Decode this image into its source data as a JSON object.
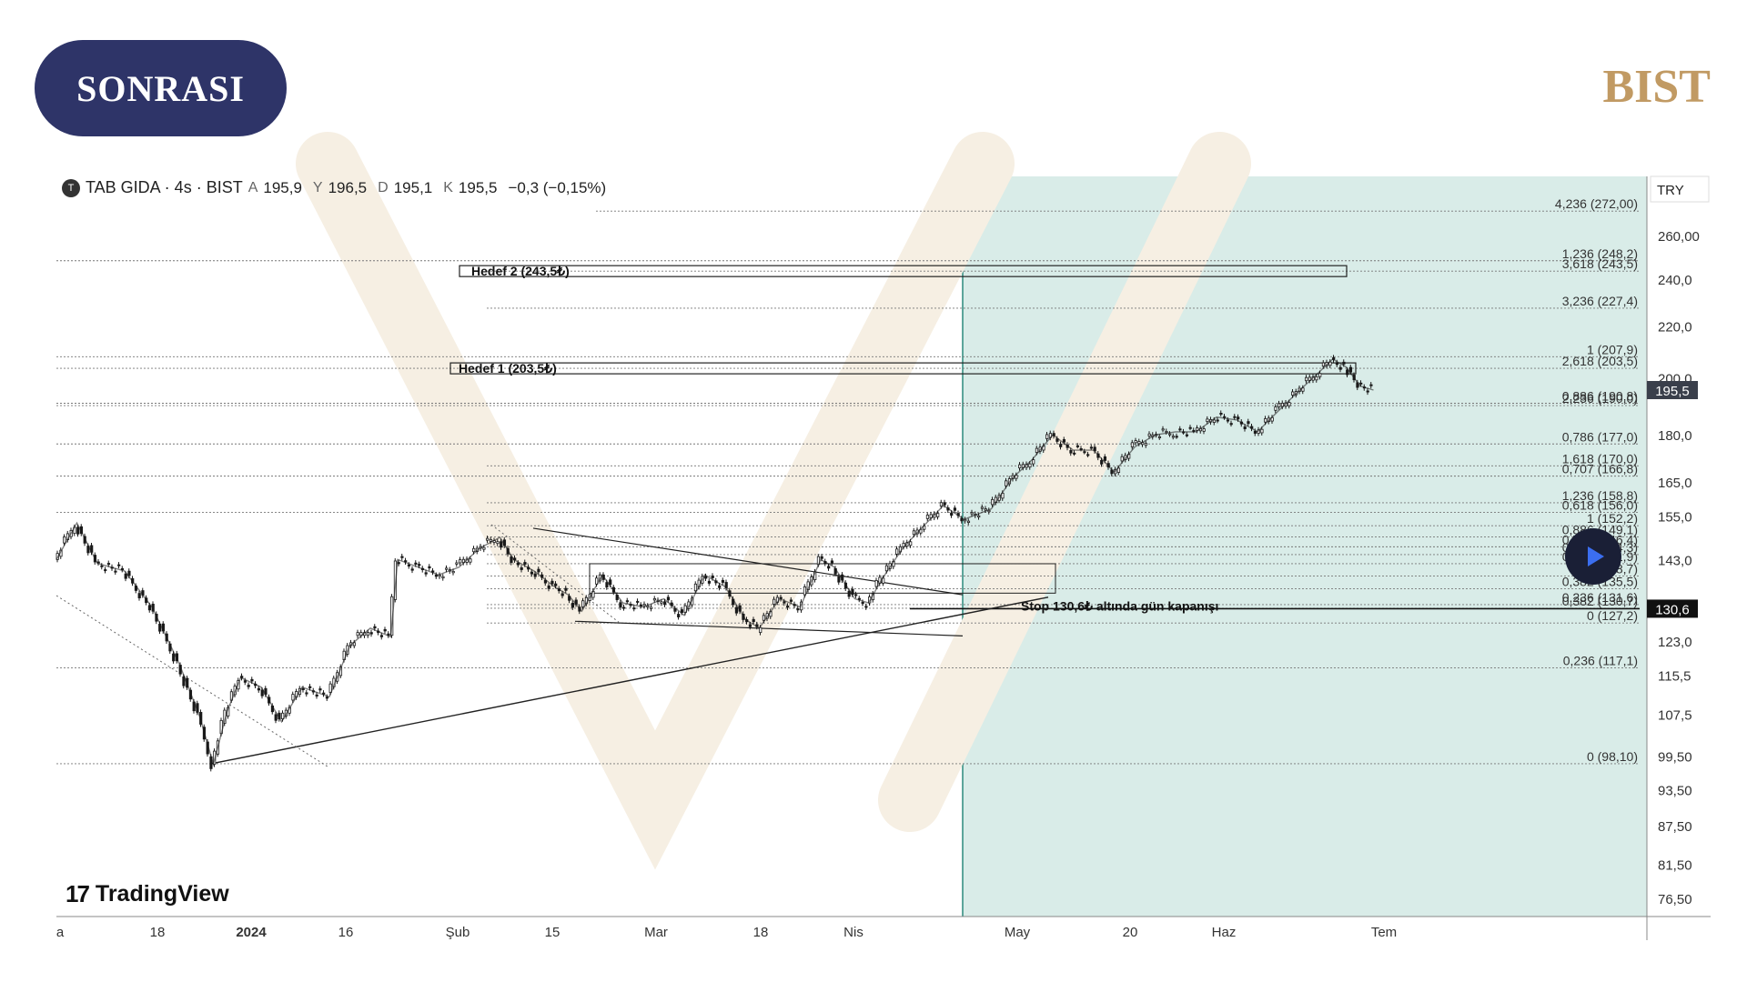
{
  "header": {
    "badge_label": "SONRASI",
    "brand_label": "BIST"
  },
  "legend": {
    "symbol_icon_letter": "T",
    "symbol": "TAB GIDA · 4s · BIST",
    "o_label": "A",
    "o_value": "195,9",
    "h_label": "Y",
    "h_value": "196,5",
    "l_label": "D",
    "l_value": "195,1",
    "c_label": "K",
    "c_value": "195,5",
    "change": "−0,3 (−0,15%)"
  },
  "watermark": {
    "mark": "17",
    "text": "TradingView"
  },
  "colors": {
    "projection": "#d9ece8",
    "projection_border": "#2c8a7c",
    "candles": "#1a1a1a",
    "badge": "#2e3468",
    "brand": "#c19a63"
  },
  "chart_data": {
    "type": "line",
    "currency": "TRY",
    "y_scale": "log",
    "ylim": [
      74,
      290
    ],
    "x_labels": [
      "a",
      "18",
      "2024",
      "16",
      "Şub",
      "15",
      "Mar",
      "18",
      "Nis",
      "May",
      "20",
      "Haz",
      "Tem"
    ],
    "y_ticks": [
      "260,00",
      "240,0",
      "220,0",
      "200,0",
      "180,0",
      "165,0",
      "155,0",
      "143,0",
      "123,0",
      "115,5",
      "107,5",
      "99,50",
      "93,50",
      "87,50",
      "81,50",
      "76,50"
    ],
    "price_tags": [
      {
        "label": "195,5",
        "value": 195.5
      },
      {
        "label": "130,6",
        "value": 130.6
      }
    ],
    "price_path": [
      {
        "t": 0,
        "v": 143
      },
      {
        "t": 3,
        "v": 153
      },
      {
        "t": 6,
        "v": 142
      },
      {
        "t": 10,
        "v": 140
      },
      {
        "t": 14,
        "v": 131
      },
      {
        "t": 18,
        "v": 118
      },
      {
        "t": 21,
        "v": 107
      },
      {
        "t": 23,
        "v": 98
      },
      {
        "t": 25,
        "v": 108
      },
      {
        "t": 27,
        "v": 115
      },
      {
        "t": 30,
        "v": 113
      },
      {
        "t": 33,
        "v": 106
      },
      {
        "t": 36,
        "v": 113
      },
      {
        "t": 40,
        "v": 111
      },
      {
        "t": 43,
        "v": 122
      },
      {
        "t": 46,
        "v": 126
      },
      {
        "t": 49,
        "v": 124
      },
      {
        "t": 50,
        "v": 143
      },
      {
        "t": 53,
        "v": 141
      },
      {
        "t": 56,
        "v": 139
      },
      {
        "t": 59,
        "v": 141
      },
      {
        "t": 62,
        "v": 146
      },
      {
        "t": 65,
        "v": 149
      },
      {
        "t": 67,
        "v": 143
      },
      {
        "t": 70,
        "v": 140
      },
      {
        "t": 73,
        "v": 136
      },
      {
        "t": 75,
        "v": 134
      },
      {
        "t": 77,
        "v": 130
      },
      {
        "t": 80,
        "v": 139
      },
      {
        "t": 83,
        "v": 132
      },
      {
        "t": 86,
        "v": 131
      },
      {
        "t": 89,
        "v": 133
      },
      {
        "t": 92,
        "v": 129
      },
      {
        "t": 95,
        "v": 139
      },
      {
        "t": 98,
        "v": 136
      },
      {
        "t": 101,
        "v": 128
      },
      {
        "t": 103,
        "v": 126
      },
      {
        "t": 106,
        "v": 133
      },
      {
        "t": 109,
        "v": 131
      },
      {
        "t": 112,
        "v": 143
      },
      {
        "t": 114,
        "v": 141
      },
      {
        "t": 117,
        "v": 133
      },
      {
        "t": 119,
        "v": 132
      },
      {
        "t": 121,
        "v": 138
      },
      {
        "t": 124,
        "v": 146
      },
      {
        "t": 127,
        "v": 152
      },
      {
        "t": 130,
        "v": 158
      },
      {
        "t": 133,
        "v": 154
      },
      {
        "t": 137,
        "v": 157
      },
      {
        "t": 140,
        "v": 166
      },
      {
        "t": 143,
        "v": 172
      },
      {
        "t": 146,
        "v": 180
      },
      {
        "t": 149,
        "v": 175
      },
      {
        "t": 152,
        "v": 175
      },
      {
        "t": 155,
        "v": 168
      },
      {
        "t": 158,
        "v": 176
      },
      {
        "t": 161,
        "v": 180
      },
      {
        "t": 164,
        "v": 181
      },
      {
        "t": 167,
        "v": 181
      },
      {
        "t": 170,
        "v": 186
      },
      {
        "t": 173,
        "v": 185
      },
      {
        "t": 176,
        "v": 181
      },
      {
        "t": 179,
        "v": 188
      },
      {
        "t": 182,
        "v": 195
      },
      {
        "t": 185,
        "v": 202
      },
      {
        "t": 187,
        "v": 207
      },
      {
        "t": 189,
        "v": 204
      },
      {
        "t": 191,
        "v": 197
      },
      {
        "t": 193,
        "v": 195.5
      }
    ],
    "fib_levels": [
      {
        "label": "4,236 (272,00)",
        "value": 272
      },
      {
        "label": "1,236 (248,2)",
        "value": 248.2
      },
      {
        "label": "3,618 (243,5)",
        "value": 243.5
      },
      {
        "label": "3,236 (227,4)",
        "value": 227.4
      },
      {
        "label": "1 (207,9)",
        "value": 207.9
      },
      {
        "label": "2,618 (203,5)",
        "value": 203.5
      },
      {
        "label": "0,886 (190,8)",
        "value": 190.8
      },
      {
        "label": "2,236 (190,0)",
        "value": 190.0
      },
      {
        "label": "0,786 (177,0)",
        "value": 177.0
      },
      {
        "label": "1,618 (170,0)",
        "value": 170.0
      },
      {
        "label": "0,707 (166,8)",
        "value": 166.8
      },
      {
        "label": "1,236 (158,8)",
        "value": 158.8
      },
      {
        "label": "0,618 (156,0)",
        "value": 156.0
      },
      {
        "label": "1 (152,2)",
        "value": 152.2
      },
      {
        "label": "0,886 (149,1)",
        "value": 149.1
      },
      {
        "label": "0,786 (146,4)",
        "value": 146.4
      },
      {
        "label": "0,707 (144,3)",
        "value": 144.3
      },
      {
        "label": "0,618 (141,9)",
        "value": 141.9
      },
      {
        "label": "0,5 (138,7)",
        "value": 138.7
      },
      {
        "label": "0,382 (135,5)",
        "value": 135.5
      },
      {
        "label": "0,236 (131,6)",
        "value": 131.6
      },
      {
        "label": "0,382 (130,7)",
        "value": 130.7
      },
      {
        "label": "0 (127,2)",
        "value": 127.2
      },
      {
        "label": "0,236 (117,1)",
        "value": 117.1
      },
      {
        "label": "0 (98,10)",
        "value": 98.1
      }
    ],
    "annotations": [
      {
        "label": "Hedef 2 (243,5₺)",
        "value": 243.5
      },
      {
        "label": "Hedef 1 (203,5₺)",
        "value": 203.5
      },
      {
        "label": "Stop 130,6₺ altında gün kapanışı",
        "value": 130.6
      }
    ]
  }
}
